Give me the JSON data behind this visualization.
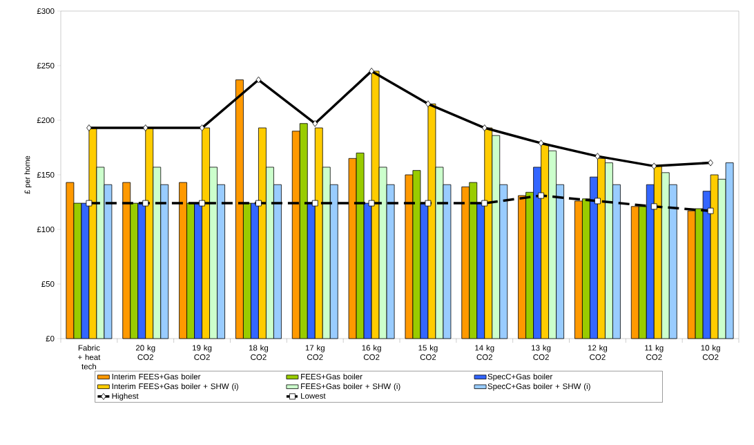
{
  "chart_data": {
    "type": "bar",
    "ylabel": "£ per home",
    "categories": [
      "Fabric + heat tech",
      "20 kg CO2",
      "19 kg CO2",
      "18 kg CO2",
      "17 kg CO2",
      "16 kg CO2",
      "15 kg CO2",
      "14 kg CO2",
      "13 kg CO2",
      "12 kg CO2",
      "11 kg CO2",
      "10 kg CO2"
    ],
    "series": [
      {
        "name": "Interim FEES+Gas boiler",
        "color": "#ff9900",
        "values": [
          143,
          143,
          143,
          237,
          190,
          165,
          150,
          139,
          131,
          126,
          121,
          117
        ]
      },
      {
        "name": "FEES+Gas boiler",
        "color": "#99cc00",
        "values": [
          124,
          124,
          124,
          124,
          197,
          170,
          154,
          143,
          134,
          128,
          121,
          119
        ]
      },
      {
        "name": "SpecC+Gas boiler",
        "color": "#3366ff",
        "values": [
          124,
          124,
          124,
          124,
          124,
          124,
          124,
          124,
          157,
          148,
          141,
          135
        ]
      },
      {
        "name": "Interim FEES+Gas boiler + SHW (i)",
        "color": "#ffcc00",
        "values": [
          193,
          193,
          193,
          193,
          193,
          245,
          215,
          193,
          178,
          165,
          158,
          150
        ]
      },
      {
        "name": "FEES+Gas boiler + SHW (i)",
        "color": "#ccffcc",
        "values": [
          157,
          157,
          157,
          157,
          157,
          157,
          157,
          186,
          172,
          161,
          152,
          146
        ]
      },
      {
        "name": "SpecC+Gas boiler + SHW (i)",
        "color": "#99ccff",
        "values": [
          141,
          141,
          141,
          141,
          141,
          141,
          141,
          141,
          141,
          141,
          141,
          161
        ]
      },
      {
        "name": "Highest",
        "type": "line",
        "color": "#000000",
        "marker": "diamond",
        "line_style": "solid",
        "values": [
          193,
          193,
          193,
          237,
          197,
          245,
          215,
          193,
          179,
          167,
          158,
          161
        ]
      },
      {
        "name": "Lowest",
        "type": "line",
        "color": "#000000",
        "marker": "square",
        "line_style": "dashed",
        "values": [
          124,
          124,
          124,
          124,
          124,
          124,
          124,
          124,
          131,
          126,
          121,
          117
        ]
      }
    ],
    "ylim": [
      0,
      300
    ],
    "yticks": [
      {
        "value": 0,
        "label": "£0"
      },
      {
        "value": 50,
        "label": "£50"
      },
      {
        "value": 100,
        "label": "£100"
      },
      {
        "value": 150,
        "label": "£150"
      },
      {
        "value": 200,
        "label": "£200"
      },
      {
        "value": 250,
        "label": "£250"
      },
      {
        "value": 300,
        "label": "£300"
      }
    ],
    "grid": false,
    "legend": "bottom"
  }
}
